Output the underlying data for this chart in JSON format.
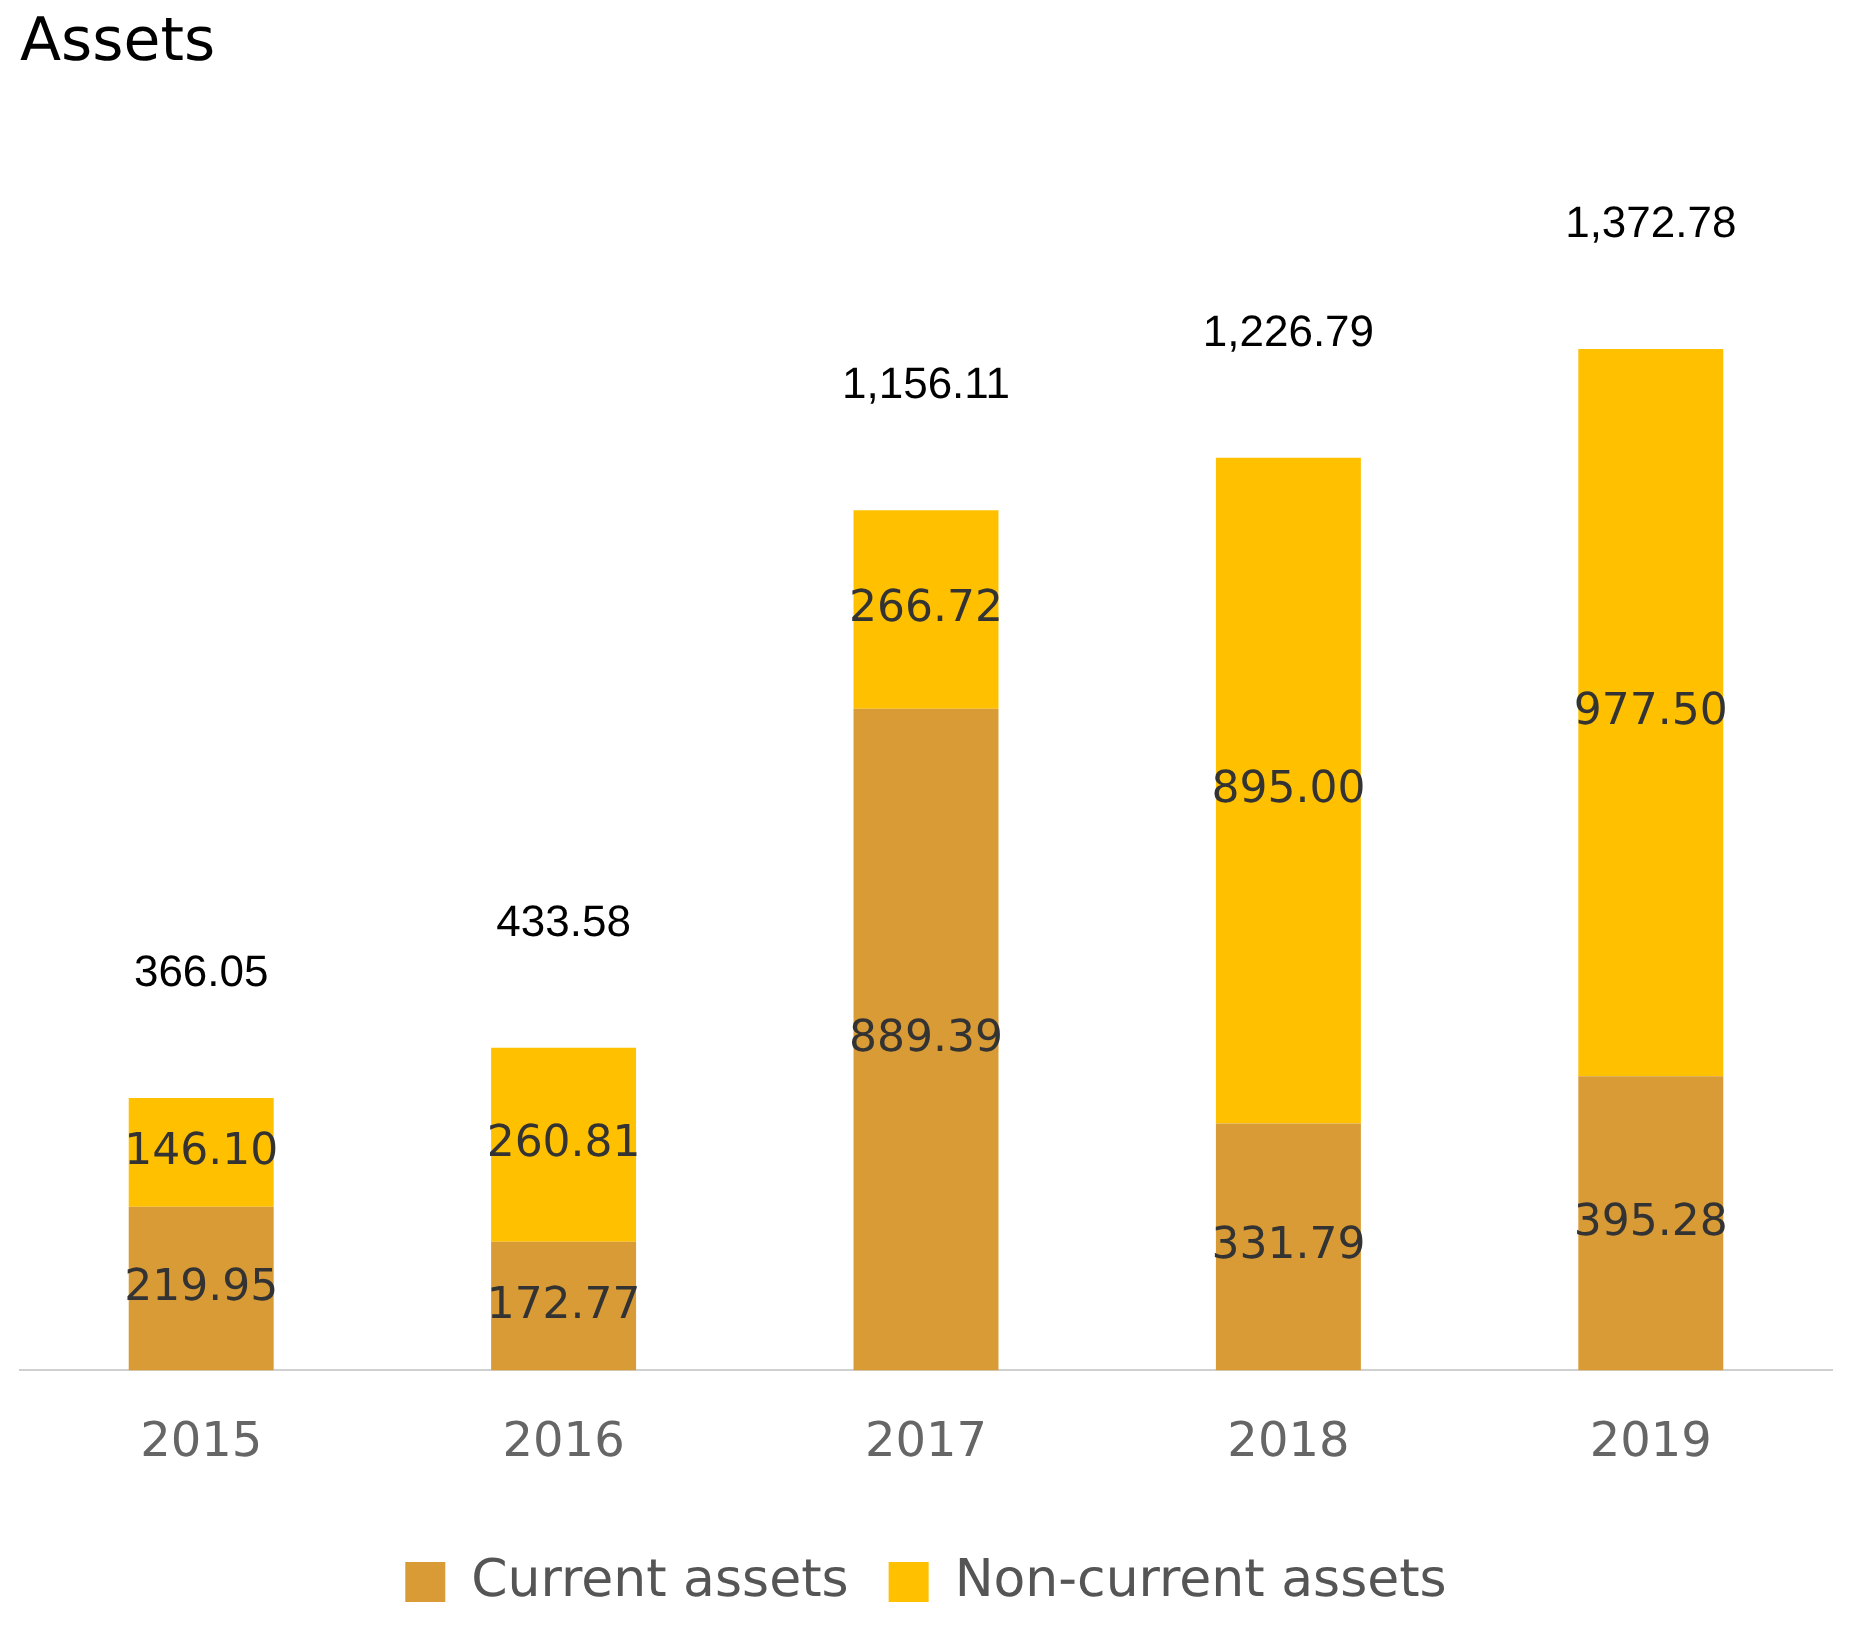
{
  "chart_data": {
    "type": "bar",
    "title": "Assets",
    "stacked": true,
    "categories": [
      "2015",
      "2016",
      "2017",
      "2018",
      "2019"
    ],
    "series": [
      {
        "name": "Current assets",
        "color": "#d99b36",
        "values": [
          219.95,
          172.77,
          889.39,
          331.79,
          395.28
        ],
        "value_labels": [
          "219.95",
          "172.77",
          "889.39",
          "331.79",
          "395.28"
        ]
      },
      {
        "name": "Non-current assets",
        "color": "#ffc000",
        "values": [
          146.1,
          260.81,
          266.72,
          895.0,
          977.5
        ],
        "value_labels": [
          "146.10",
          "260.81",
          "266.72",
          "895.00",
          "977.50"
        ]
      }
    ],
    "totals": [
      "366.05",
      "433.58",
      "1,156.11",
      "1,226.79",
      "1,372.78"
    ],
    "grid": false,
    "legend": "bottom",
    "tick_labels": "x"
  }
}
